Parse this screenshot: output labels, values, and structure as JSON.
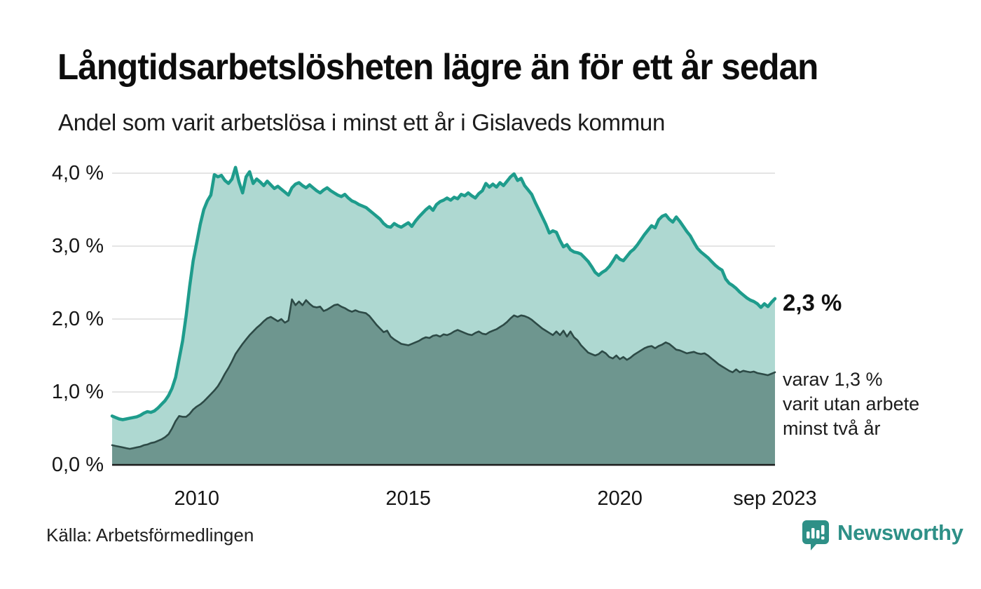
{
  "header": {
    "title": "Långtidsarbetslösheten lägre än för ett år sedan",
    "subtitle": "Andel som varit arbetslösa i minst ett år i Gislaveds kommun"
  },
  "annotations": {
    "latest_value": "2,3 %",
    "sub_lines": [
      "varav 1,3 %",
      "varit utan arbete",
      "minst två år"
    ]
  },
  "footer": {
    "source": "Källa: Arbetsförmedlingen",
    "brand_name": "Newsworthy",
    "brand_color": "#2e9087"
  },
  "chart_data": {
    "type": "area",
    "title": "Långtidsarbetslösheten lägre än för ett år sedan",
    "subtitle": "Andel som varit arbetslösa i minst ett år i Gislaveds kommun",
    "unit": "%",
    "x_start": "2008-01",
    "x_end": "2023-09",
    "frequency": "monthly",
    "ylim": [
      0,
      4.2
    ],
    "grid": true,
    "colors": {
      "line1": "#1e9c8c",
      "fill1": "#aed8d1",
      "line2": "#2d4a46",
      "fill2": "#6e968f",
      "gridline": "#e4e4e4",
      "axis": "#1c1c1c"
    },
    "y_ticks": [
      {
        "value": 0,
        "label": "0,0 %"
      },
      {
        "value": 1,
        "label": "1,0 %"
      },
      {
        "value": 2,
        "label": "2,0 %"
      },
      {
        "value": 3,
        "label": "3,0 %"
      },
      {
        "value": 4,
        "label": "4,0 %"
      }
    ],
    "x_ticks": [
      {
        "index": 24,
        "label": "2010"
      },
      {
        "index": 84,
        "label": "2015"
      },
      {
        "index": 144,
        "label": "2020"
      },
      {
        "index": 188,
        "label": "sep 2023"
      }
    ],
    "series": [
      {
        "name": "Arbetslösa minst ett år",
        "end_label": "2,3 %",
        "values": [
          0.67,
          0.65,
          0.63,
          0.62,
          0.63,
          0.64,
          0.65,
          0.66,
          0.68,
          0.71,
          0.73,
          0.72,
          0.74,
          0.78,
          0.83,
          0.88,
          0.95,
          1.05,
          1.2,
          1.45,
          1.7,
          2.05,
          2.45,
          2.8,
          3.05,
          3.3,
          3.5,
          3.62,
          3.7,
          3.98,
          3.95,
          3.97,
          3.9,
          3.86,
          3.92,
          4.08,
          3.88,
          3.73,
          3.95,
          4.02,
          3.86,
          3.92,
          3.88,
          3.83,
          3.89,
          3.84,
          3.79,
          3.82,
          3.78,
          3.74,
          3.7,
          3.8,
          3.85,
          3.87,
          3.83,
          3.8,
          3.84,
          3.8,
          3.76,
          3.73,
          3.77,
          3.8,
          3.76,
          3.73,
          3.7,
          3.68,
          3.71,
          3.66,
          3.62,
          3.6,
          3.57,
          3.55,
          3.53,
          3.49,
          3.45,
          3.41,
          3.37,
          3.31,
          3.27,
          3.26,
          3.31,
          3.28,
          3.26,
          3.29,
          3.32,
          3.27,
          3.34,
          3.4,
          3.45,
          3.5,
          3.54,
          3.49,
          3.57,
          3.61,
          3.63,
          3.66,
          3.63,
          3.67,
          3.65,
          3.71,
          3.69,
          3.73,
          3.69,
          3.66,
          3.72,
          3.76,
          3.86,
          3.81,
          3.85,
          3.81,
          3.87,
          3.83,
          3.89,
          3.95,
          3.99,
          3.9,
          3.93,
          3.83,
          3.77,
          3.71,
          3.6,
          3.5,
          3.4,
          3.3,
          3.18,
          3.21,
          3.19,
          3.08,
          2.99,
          3.02,
          2.95,
          2.92,
          2.91,
          2.89,
          2.84,
          2.79,
          2.72,
          2.64,
          2.6,
          2.64,
          2.67,
          2.72,
          2.79,
          2.87,
          2.82,
          2.8,
          2.86,
          2.92,
          2.96,
          3.02,
          3.09,
          3.16,
          3.22,
          3.28,
          3.25,
          3.36,
          3.41,
          3.43,
          3.37,
          3.33,
          3.4,
          3.34,
          3.27,
          3.2,
          3.14,
          3.05,
          2.97,
          2.92,
          2.88,
          2.84,
          2.79,
          2.74,
          2.7,
          2.67,
          2.55,
          2.49,
          2.46,
          2.42,
          2.37,
          2.33,
          2.29,
          2.26,
          2.24,
          2.21,
          2.16,
          2.21,
          2.17,
          2.23,
          2.28
        ]
      },
      {
        "name": "varav arbetslösa minst två år",
        "end_label": "1,3 %",
        "values": [
          0.27,
          0.26,
          0.25,
          0.24,
          0.23,
          0.22,
          0.23,
          0.24,
          0.25,
          0.27,
          0.28,
          0.3,
          0.31,
          0.33,
          0.35,
          0.38,
          0.42,
          0.5,
          0.6,
          0.67,
          0.66,
          0.66,
          0.7,
          0.76,
          0.8,
          0.83,
          0.87,
          0.92,
          0.97,
          1.02,
          1.08,
          1.16,
          1.25,
          1.33,
          1.42,
          1.52,
          1.59,
          1.66,
          1.72,
          1.78,
          1.83,
          1.88,
          1.92,
          1.97,
          2.01,
          2.03,
          2.0,
          1.97,
          2.0,
          1.95,
          1.98,
          2.27,
          2.19,
          2.24,
          2.19,
          2.26,
          2.21,
          2.17,
          2.16,
          2.17,
          2.11,
          2.13,
          2.16,
          2.19,
          2.2,
          2.17,
          2.15,
          2.12,
          2.1,
          2.12,
          2.1,
          2.09,
          2.08,
          2.04,
          1.98,
          1.92,
          1.87,
          1.82,
          1.84,
          1.76,
          1.72,
          1.69,
          1.66,
          1.65,
          1.64,
          1.66,
          1.68,
          1.7,
          1.73,
          1.75,
          1.74,
          1.77,
          1.78,
          1.76,
          1.79,
          1.78,
          1.8,
          1.83,
          1.85,
          1.83,
          1.81,
          1.79,
          1.78,
          1.81,
          1.83,
          1.8,
          1.79,
          1.82,
          1.84,
          1.86,
          1.89,
          1.92,
          1.96,
          2.01,
          2.05,
          2.03,
          2.05,
          2.04,
          2.02,
          1.99,
          1.95,
          1.91,
          1.87,
          1.84,
          1.81,
          1.78,
          1.83,
          1.78,
          1.84,
          1.76,
          1.83,
          1.75,
          1.71,
          1.64,
          1.59,
          1.54,
          1.52,
          1.5,
          1.52,
          1.56,
          1.53,
          1.48,
          1.46,
          1.5,
          1.45,
          1.48,
          1.44,
          1.47,
          1.51,
          1.54,
          1.57,
          1.6,
          1.62,
          1.63,
          1.6,
          1.63,
          1.65,
          1.68,
          1.66,
          1.62,
          1.58,
          1.57,
          1.55,
          1.53,
          1.54,
          1.55,
          1.53,
          1.52,
          1.53,
          1.5,
          1.46,
          1.42,
          1.38,
          1.35,
          1.32,
          1.29,
          1.27,
          1.31,
          1.27,
          1.29,
          1.28,
          1.27,
          1.28,
          1.26,
          1.25,
          1.24,
          1.23,
          1.25,
          1.27
        ]
      }
    ]
  }
}
